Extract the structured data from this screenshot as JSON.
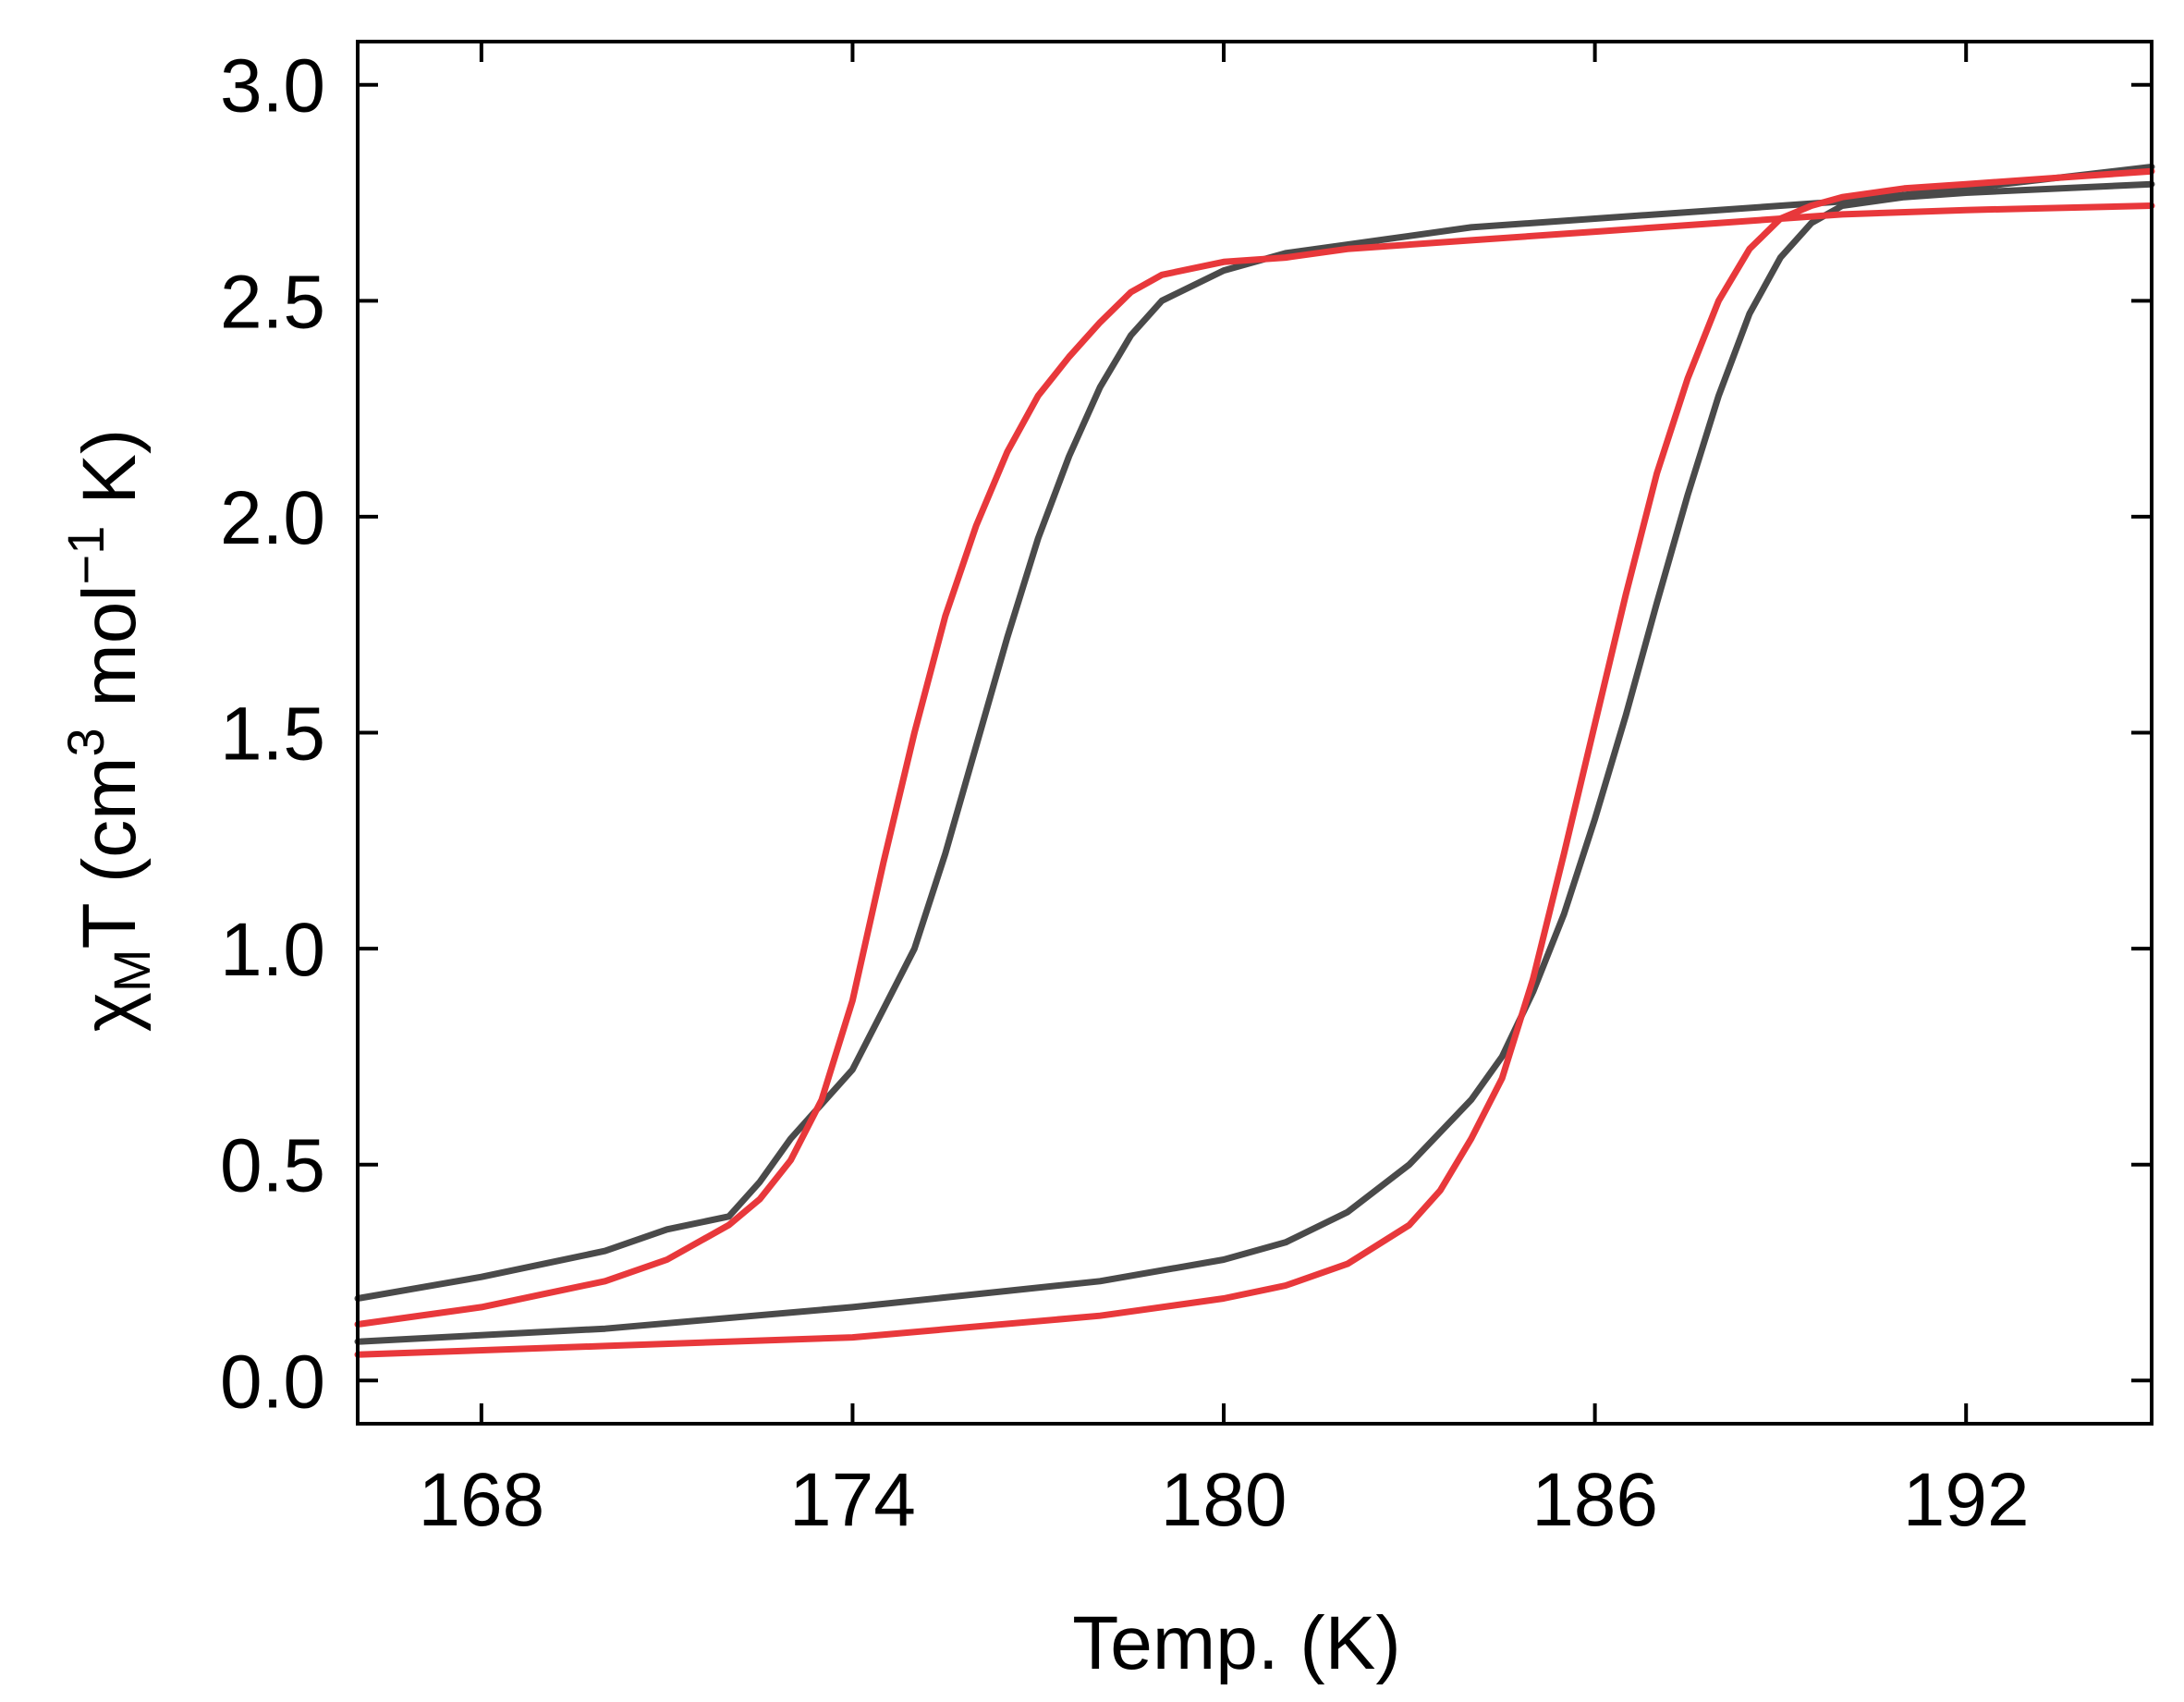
{
  "chart_data": {
    "type": "line",
    "title": "",
    "xlabel": "Temp. (K)",
    "ylabel": {
      "prefix": "χ",
      "prefix_sub": "M",
      "mid": "T (cm",
      "sup1": "3",
      "mid2": " mol",
      "sup2": "−1",
      "suffix": " K)"
    },
    "xlim": [
      166,
      195
    ],
    "ylim": [
      -0.1,
      3.1
    ],
    "xticks": [
      168,
      174,
      180,
      186,
      192
    ],
    "xtick_labels": [
      "168",
      "174",
      "180",
      "186",
      "192"
    ],
    "yticks": [
      0.0,
      0.5,
      1.0,
      1.5,
      2.0,
      2.5,
      3.0
    ],
    "ytick_labels": [
      "0.0",
      "0.5",
      "1.0",
      "1.5",
      "2.0",
      "2.5",
      "3.0"
    ],
    "grid": false,
    "series": [
      {
        "color": "#4a4a4a",
        "x": [
          166,
          168,
          170,
          171,
          172,
          172.5,
          173,
          174,
          175,
          175.5,
          176,
          176.5,
          177,
          177.5,
          178,
          178.5,
          179,
          180,
          181,
          182,
          184,
          186,
          188,
          190,
          192,
          195
        ],
        "y": [
          0.19,
          0.24,
          0.3,
          0.35,
          0.38,
          0.46,
          0.56,
          0.72,
          1.0,
          1.22,
          1.47,
          1.72,
          1.95,
          2.14,
          2.3,
          2.42,
          2.5,
          2.57,
          2.61,
          2.63,
          2.67,
          2.69,
          2.71,
          2.73,
          2.76,
          2.81
        ]
      },
      {
        "color": "#4a4a4a",
        "x": [
          166,
          170,
          174,
          178,
          180,
          181,
          182,
          183,
          184,
          184.5,
          185,
          185.5,
          186,
          186.5,
          187,
          187.5,
          188,
          188.5,
          189,
          189.5,
          190,
          191,
          192,
          195
        ],
        "y": [
          0.09,
          0.12,
          0.17,
          0.23,
          0.28,
          0.32,
          0.39,
          0.5,
          0.65,
          0.75,
          0.9,
          1.08,
          1.3,
          1.54,
          1.8,
          2.05,
          2.28,
          2.47,
          2.6,
          2.68,
          2.72,
          2.74,
          2.75,
          2.77
        ]
      },
      {
        "color": "#e8383b",
        "x": [
          166,
          168,
          169,
          170,
          171,
          172,
          172.5,
          173,
          173.5,
          174,
          174.5,
          175,
          175.5,
          176,
          176.5,
          177,
          177.5,
          178,
          178.5,
          179,
          180,
          181,
          182,
          184,
          186,
          188,
          190,
          192,
          195
        ],
        "y": [
          0.13,
          0.17,
          0.2,
          0.23,
          0.28,
          0.36,
          0.42,
          0.51,
          0.65,
          0.88,
          1.2,
          1.5,
          1.77,
          1.98,
          2.15,
          2.28,
          2.37,
          2.45,
          2.52,
          2.56,
          2.59,
          2.6,
          2.62,
          2.64,
          2.66,
          2.68,
          2.7,
          2.71,
          2.72
        ]
      },
      {
        "color": "#e8383b",
        "x": [
          166,
          170,
          174,
          178,
          180,
          181,
          182,
          183,
          183.5,
          184,
          184.5,
          185,
          185.5,
          186,
          186.5,
          187,
          187.5,
          188,
          188.5,
          189,
          189.5,
          190,
          191,
          192,
          195
        ],
        "y": [
          0.06,
          0.08,
          0.1,
          0.15,
          0.19,
          0.22,
          0.27,
          0.36,
          0.44,
          0.56,
          0.7,
          0.93,
          1.22,
          1.52,
          1.82,
          2.1,
          2.32,
          2.5,
          2.62,
          2.69,
          2.72,
          2.74,
          2.76,
          2.77,
          2.8
        ]
      }
    ]
  }
}
